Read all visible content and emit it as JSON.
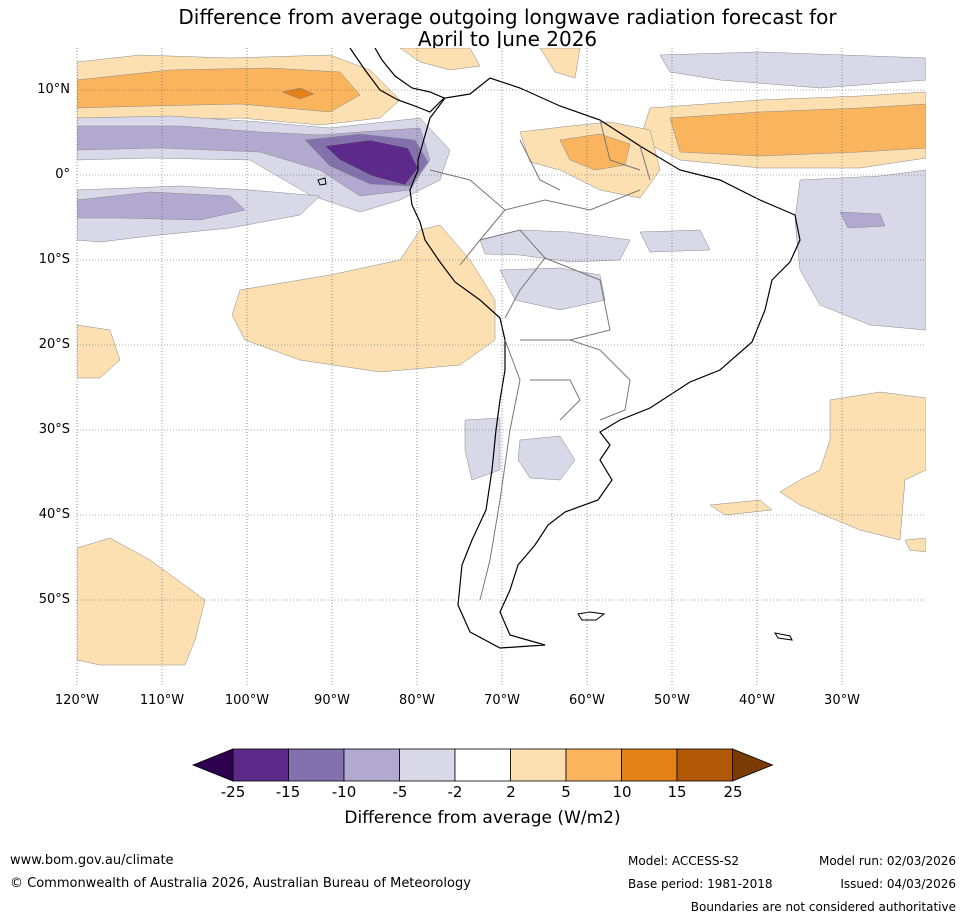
{
  "title_line1": "Difference from average outgoing longwave radiation forecast for",
  "title_line2": "April to June 2026",
  "lat_labels": [
    "10°N",
    "0°",
    "10°S",
    "20°S",
    "30°S",
    "40°S",
    "50°S"
  ],
  "lon_labels": [
    "120°W",
    "110°W",
    "100°W",
    "90°W",
    "80°W",
    "70°W",
    "60°W",
    "50°W",
    "40°W",
    "30°W"
  ],
  "colorbar": {
    "label": "Difference from average (W/m2)",
    "ticks": [
      "-25",
      "-15",
      "-10",
      "-5",
      "-2",
      "2",
      "5",
      "10",
      "15",
      "25"
    ],
    "colors": [
      "#2d0050",
      "#5b2a8a",
      "#8271ac",
      "#b2a9d1",
      "#d9d8e9",
      "#ffffff",
      "#fde0b2",
      "#fbb45e",
      "#e38217",
      "#b35806",
      "#7a3a03"
    ]
  },
  "footer": {
    "site": "www.bom.gov.au/climate",
    "copyright": "© Commonwealth of Australia 2026, Australian Bureau of Meteorology",
    "model": "Model: ACCESS-S2",
    "base_period": "Base period: 1981-2018",
    "model_run": "Model run: 02/03/2026",
    "issued": "Issued: 04/03/2026",
    "disclaimer": "Boundaries are not considered authoritative"
  }
}
